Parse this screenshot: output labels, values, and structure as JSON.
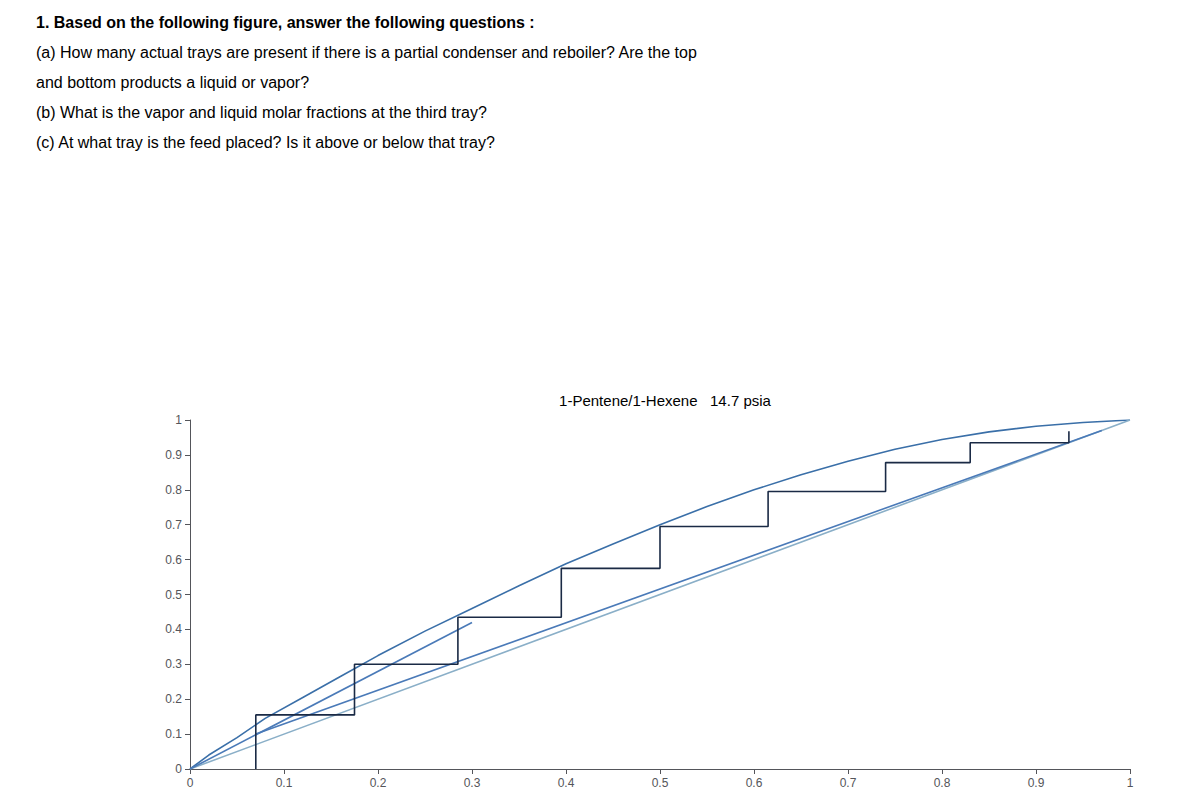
{
  "chart_data": {
    "type": "line",
    "title": "1-Pentene/1-Hexene   14.7 psia",
    "annotations": [
      "1. Based on the following figure, answer the following questions :",
      "(a) How many actual trays are present if there is a partial condenser and reboiler? Are the top",
      "and bottom products a liquid or vapor?",
      "(b) What is the vapor and liquid molar fractions at the third tray?",
      "(c) At what tray is the feed placed? Is it above or below that tray?"
    ],
    "xlim": [
      0,
      1
    ],
    "ylim": [
      0,
      1
    ],
    "xticks": [
      0,
      0.1,
      0.2,
      0.3,
      0.4,
      0.5,
      0.6,
      0.7,
      0.8,
      0.9,
      1
    ],
    "yticks": [
      0,
      0.1,
      0.2,
      0.3,
      0.4,
      0.5,
      0.6,
      0.7,
      0.8,
      0.9,
      1
    ],
    "grid": false,
    "series": [
      {
        "color": "#3a6fa8",
        "x": [
          0.0,
          0.02,
          0.05,
          0.08,
          0.12,
          0.16,
          0.2,
          0.25,
          0.3,
          0.35,
          0.4,
          0.45,
          0.5,
          0.55,
          0.6,
          0.65,
          0.7,
          0.75,
          0.8,
          0.85,
          0.9,
          0.95,
          1.0
        ],
        "values": [
          0.0,
          0.04,
          0.09,
          0.145,
          0.205,
          0.265,
          0.325,
          0.395,
          0.46,
          0.525,
          0.588,
          0.645,
          0.7,
          0.752,
          0.8,
          0.843,
          0.882,
          0.916,
          0.944,
          0.966,
          0.982,
          0.993,
          1.0
        ]
      },
      {
        "color": "#8aafc8",
        "x": [
          0.0,
          1.0
        ],
        "values": [
          0.0,
          1.0
        ]
      },
      {
        "color": "#4a7ab8",
        "x": [
          0.07,
          0.97
        ],
        "values": [
          0.1,
          0.97
        ]
      },
      {
        "color": "#4a7ab8",
        "x": [
          0.0,
          0.3
        ],
        "values": [
          0.0,
          0.42
        ]
      },
      {
        "color": "#1a2a45",
        "x": [
          0.07,
          0.07,
          0.175,
          0.175,
          0.285,
          0.285,
          0.395,
          0.395,
          0.5,
          0.5,
          0.615,
          0.615,
          0.74,
          0.74,
          0.83,
          0.83,
          0.935,
          0.935
        ],
        "values": [
          0.0,
          0.155,
          0.155,
          0.3,
          0.3,
          0.435,
          0.435,
          0.575,
          0.575,
          0.695,
          0.695,
          0.795,
          0.795,
          0.878,
          0.878,
          0.935,
          0.935,
          0.968
        ]
      }
    ]
  }
}
